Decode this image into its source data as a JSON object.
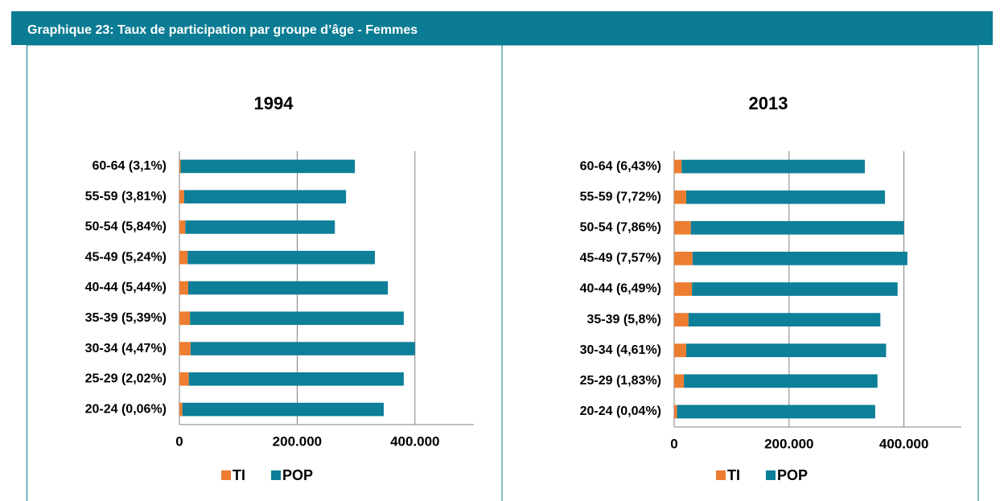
{
  "header": {
    "title": "Graphique 23: Taux de participation par groupe d’âge - Femmes"
  },
  "chart_data": [
    {
      "type": "stacked-bar-horizontal",
      "title": "1994",
      "categories": [
        "20-24 (0,06%)",
        "25-29 (2,02%)",
        "30-34 (4,47%)",
        "35-39 (5,39%)",
        "40-44 (5,44%)",
        "45-49 (5,24%)",
        "50-54 (5,84%)",
        "55-59 (3,81%)",
        "60-64 (3,1%)"
      ],
      "series": [
        {
          "name": "TI",
          "color": "#ed7d31",
          "values": [
            5000,
            16000,
            19000,
            18000,
            15000,
            14000,
            10000,
            8000,
            2000
          ]
        },
        {
          "name": "POP",
          "color": "#0e7f98",
          "values": [
            342000,
            365000,
            381000,
            363000,
            339000,
            318000,
            254000,
            275000,
            296000
          ]
        }
      ],
      "xlim": [
        0,
        500000
      ],
      "xticks": [
        0,
        {
          "value": 200000,
          "label": "200.000"
        },
        {
          "value": 400000,
          "label": "400.000"
        }
      ],
      "grid": true,
      "legend": "bottom"
    },
    {
      "type": "stacked-bar-horizontal",
      "title": "2013",
      "categories": [
        "20-24 (0,04%)",
        "25-29 (1,83%)",
        "30-34 (4,61%)",
        "35-39 (5,8%)",
        "40-44 (6,49%)",
        "45-49 (7,57%)",
        "50-54 (7,86%)",
        "55-59 (7,72%)",
        "60-64 (6,43%)"
      ],
      "series": [
        {
          "name": "TI",
          "color": "#ed7d31",
          "values": [
            5000,
            17000,
            21000,
            25000,
            31000,
            32000,
            29000,
            21000,
            13000
          ]
        },
        {
          "name": "POP",
          "color": "#0e7f98",
          "values": [
            345000,
            337000,
            348000,
            334000,
            358000,
            374000,
            371000,
            346000,
            319000
          ]
        }
      ],
      "xlim": [
        0,
        500000
      ],
      "xticks": [
        0,
        {
          "value": 200000,
          "label": "200.000"
        },
        {
          "value": 400000,
          "label": "400.000"
        }
      ],
      "grid": true,
      "legend": "bottom"
    }
  ]
}
